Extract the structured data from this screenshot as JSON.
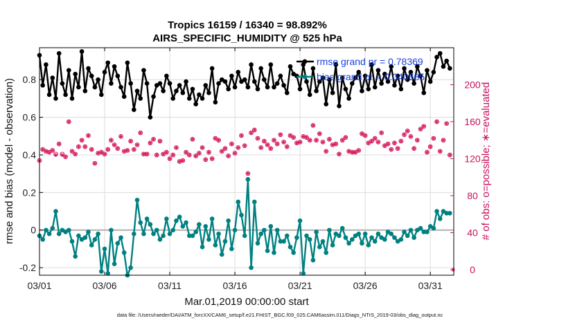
{
  "chart_data": {
    "type": "line",
    "title": [
      "Tropics 16159 / 16340 = 98.892%",
      "AIRS_SPECIFIC_HUMIDITY @ 525 hPa"
    ],
    "xlabel": "Mar.01,2019 00:00:00 start",
    "ylabel": "rmse and bias (model - observation)",
    "ylabel_right": "# of obs: o=possible; ∗=evaluated",
    "xlim": [
      0,
      31.8
    ],
    "ylim": [
      -0.24,
      0.97
    ],
    "ylim_right": [
      -6,
      240
    ],
    "x_ticks": [
      0,
      5,
      10,
      15,
      20,
      25,
      30
    ],
    "x_tick_labels": [
      "03/01",
      "03/06",
      "03/11",
      "03/16",
      "03/21",
      "03/26",
      "03/31"
    ],
    "y_ticks": [
      -0.2,
      0,
      0.2,
      0.4,
      0.6,
      0.8
    ],
    "y_tick_labels": [
      "-0.2",
      "0",
      "0.2",
      "0.4",
      "0.6",
      "0.8"
    ],
    "y_ticks_right": [
      0,
      40,
      80,
      120,
      160,
      200
    ],
    "y_tick_labels_right": [
      "0",
      "40",
      "80",
      "120",
      "160",
      "200"
    ],
    "grid": true,
    "zero_line": 0,
    "legend": [
      "rmse grand pr = 0.78369",
      "bias grand pr = 0.040685"
    ],
    "legend_position": "top-right",
    "colors": {
      "rmse": "#000000",
      "bias": "#008080",
      "obs": "#d4145a",
      "zero": "#b0b0b0",
      "right_axis": "#c8105a"
    },
    "series": [
      {
        "name": "rmse",
        "x": [
          0.0,
          0.25,
          0.5,
          0.75,
          1.0,
          1.25,
          1.5,
          1.75,
          2.0,
          2.25,
          2.5,
          2.75,
          3.0,
          3.25,
          3.5,
          3.75,
          4.0,
          4.25,
          4.5,
          4.75,
          5.0,
          5.25,
          5.5,
          5.75,
          6.0,
          6.25,
          6.5,
          6.75,
          7.0,
          7.25,
          7.5,
          7.75,
          8.0,
          8.25,
          8.5,
          8.75,
          9.0,
          9.25,
          9.5,
          9.75,
          10.0,
          10.25,
          10.5,
          10.75,
          11.0,
          11.25,
          11.5,
          11.75,
          12.0,
          12.25,
          12.5,
          12.75,
          13.0,
          13.25,
          13.5,
          13.75,
          14.0,
          14.25,
          14.5,
          14.75,
          15.0,
          15.25,
          15.5,
          15.75,
          16.0,
          16.25,
          16.5,
          16.75,
          17.0,
          17.25,
          17.5,
          17.75,
          18.0,
          18.25,
          18.5,
          18.75,
          19.0,
          19.25,
          19.5,
          19.75,
          20.0,
          20.25,
          20.5,
          20.75,
          21.0,
          21.25,
          21.5,
          21.75,
          22.0,
          22.25,
          22.5,
          22.75,
          23.0,
          23.25,
          23.5,
          23.75,
          24.0,
          24.25,
          24.5,
          24.75,
          25.0,
          25.25,
          25.5,
          25.75,
          26.0,
          26.25,
          26.5,
          26.75,
          27.0,
          27.25,
          27.5,
          27.75,
          28.0,
          28.25,
          28.5,
          28.75,
          29.0,
          29.25,
          29.5,
          29.75,
          30.0,
          30.25,
          30.5,
          30.75,
          31.0,
          31.25,
          31.5
        ],
        "values": [
          0.93,
          0.77,
          0.88,
          0.72,
          0.81,
          0.7,
          0.94,
          0.78,
          0.72,
          0.85,
          0.7,
          0.83,
          0.76,
          0.95,
          0.74,
          0.86,
          0.82,
          0.76,
          0.8,
          0.72,
          0.84,
          0.89,
          0.78,
          0.87,
          0.82,
          0.76,
          0.71,
          0.89,
          0.78,
          0.64,
          0.74,
          0.7,
          0.85,
          0.78,
          0.6,
          0.71,
          0.77,
          0.78,
          0.74,
          0.82,
          0.78,
          0.7,
          0.74,
          0.77,
          0.73,
          0.79,
          0.7,
          0.75,
          0.67,
          0.72,
          0.7,
          0.77,
          0.73,
          0.86,
          0.68,
          0.78,
          0.8,
          0.79,
          0.75,
          0.82,
          0.76,
          0.84,
          0.79,
          0.8,
          0.76,
          0.88,
          0.79,
          0.75,
          0.86,
          0.8,
          0.76,
          0.88,
          0.76,
          0.78,
          0.82,
          0.77,
          0.73,
          0.87,
          0.83,
          0.82,
          0.75,
          0.88,
          0.79,
          0.72,
          0.86,
          0.74,
          0.79,
          0.81,
          0.67,
          0.8,
          0.73,
          0.88,
          0.66,
          0.81,
          0.75,
          0.7,
          0.78,
          0.81,
          0.84,
          0.74,
          0.82,
          0.75,
          0.88,
          0.76,
          0.85,
          0.78,
          0.83,
          0.79,
          0.87,
          0.77,
          0.82,
          0.75,
          0.86,
          0.8,
          0.84,
          0.78,
          0.87,
          0.82,
          0.73,
          0.85,
          0.79,
          0.84,
          0.92,
          0.94,
          0.87,
          0.9,
          0.86
        ]
      },
      {
        "name": "bias",
        "x": [
          0.0,
          0.25,
          0.5,
          0.75,
          1.0,
          1.25,
          1.5,
          1.75,
          2.0,
          2.25,
          2.5,
          2.75,
          3.0,
          3.25,
          3.5,
          3.75,
          4.0,
          4.25,
          4.5,
          4.75,
          5.0,
          5.25,
          5.5,
          5.75,
          6.0,
          6.25,
          6.5,
          6.75,
          7.0,
          7.25,
          7.5,
          7.75,
          8.0,
          8.25,
          8.5,
          8.75,
          9.0,
          9.25,
          9.5,
          9.75,
          10.0,
          10.25,
          10.5,
          10.75,
          11.0,
          11.25,
          11.5,
          11.75,
          12.0,
          12.25,
          12.5,
          12.75,
          13.0,
          13.25,
          13.5,
          13.75,
          14.0,
          14.25,
          14.5,
          14.75,
          15.0,
          15.25,
          15.5,
          15.75,
          16.0,
          16.25,
          16.5,
          16.75,
          17.0,
          17.25,
          17.5,
          17.75,
          18.0,
          18.25,
          18.5,
          18.75,
          19.0,
          19.25,
          19.5,
          19.75,
          20.0,
          20.25,
          20.5,
          20.75,
          21.0,
          21.25,
          21.5,
          21.75,
          22.0,
          22.25,
          22.5,
          22.75,
          23.0,
          23.25,
          23.5,
          23.75,
          24.0,
          24.25,
          24.5,
          24.75,
          25.0,
          25.25,
          25.5,
          25.75,
          26.0,
          26.25,
          26.5,
          26.75,
          27.0,
          27.25,
          27.5,
          27.75,
          28.0,
          28.25,
          28.5,
          28.75,
          29.0,
          29.25,
          29.5,
          29.75,
          30.0,
          30.25,
          30.5,
          30.75,
          31.0,
          31.25,
          31.5
        ],
        "values": [
          -0.03,
          -0.05,
          0.0,
          -0.02,
          0.01,
          0.1,
          -0.02,
          0.0,
          -0.01,
          0.0,
          -0.06,
          -0.14,
          -0.03,
          -0.05,
          -0.04,
          -0.01,
          -0.08,
          -0.05,
          -0.02,
          -0.22,
          -0.1,
          -0.23,
          0.0,
          -0.18,
          -0.07,
          -0.04,
          -0.12,
          -0.24,
          -0.2,
          -0.02,
          0.16,
          0.04,
          -0.02,
          0.06,
          0.03,
          -0.02,
          0.0,
          -0.05,
          -0.03,
          0.06,
          -0.02,
          0.0,
          0.05,
          0.07,
          0.02,
          0.04,
          -0.03,
          -0.03,
          -0.01,
          0.03,
          -0.09,
          0.02,
          -0.05,
          0.06,
          -0.08,
          -0.02,
          -0.13,
          -0.06,
          0.05,
          -0.1,
          0.0,
          0.15,
          0.08,
          -0.03,
          0.27,
          -0.2,
          0.15,
          -0.07,
          -0.02,
          0.0,
          -0.11,
          0.02,
          -0.12,
          0.0,
          -0.06,
          -0.06,
          -0.03,
          -0.09,
          -0.12,
          -0.04,
          0.05,
          -0.23,
          -0.03,
          -0.05,
          -0.16,
          -0.01,
          -0.09,
          -0.06,
          -0.12,
          0.0,
          -0.08,
          -0.02,
          -0.03,
          0.01,
          -0.04,
          -0.07,
          -0.05,
          -0.03,
          -0.02,
          -0.07,
          -0.02,
          -0.08,
          -0.04,
          -0.06,
          -0.02,
          -0.04,
          -0.05,
          -0.01,
          -0.02,
          -0.04,
          -0.06,
          -0.05,
          -0.01,
          -0.03,
          0.0,
          -0.04,
          0.0,
          0.01,
          -0.01,
          -0.01,
          0.02,
          0.01,
          0.1,
          0.06,
          0.1,
          0.09,
          0.09
        ]
      },
      {
        "name": "obs_possible",
        "axis": "right",
        "x": [
          0.0,
          0.25,
          0.5,
          0.75,
          1.0,
          1.25,
          1.5,
          1.75,
          2.0,
          2.25,
          2.5,
          2.75,
          3.0,
          3.25,
          3.5,
          3.75,
          4.0,
          4.25,
          4.5,
          4.75,
          5.0,
          5.25,
          5.5,
          5.75,
          6.0,
          6.25,
          6.5,
          6.75,
          7.0,
          7.25,
          7.5,
          7.75,
          8.0,
          8.25,
          8.5,
          8.75,
          9.0,
          9.25,
          9.5,
          9.75,
          10.0,
          10.25,
          10.5,
          10.75,
          11.0,
          11.25,
          11.5,
          11.75,
          12.0,
          12.25,
          12.5,
          12.75,
          13.0,
          13.25,
          13.5,
          13.75,
          14.0,
          14.25,
          14.5,
          14.75,
          15.0,
          15.25,
          15.5,
          15.75,
          16.0,
          16.25,
          16.5,
          16.75,
          17.0,
          17.25,
          17.5,
          17.75,
          18.0,
          18.25,
          18.5,
          18.75,
          19.0,
          19.25,
          19.5,
          19.75,
          20.0,
          20.25,
          20.5,
          20.75,
          21.0,
          21.25,
          21.5,
          21.75,
          22.0,
          22.25,
          22.5,
          22.75,
          23.0,
          23.25,
          23.5,
          23.75,
          24.0,
          24.25,
          24.5,
          24.75,
          25.0,
          25.25,
          25.5,
          25.75,
          26.0,
          26.25,
          26.5,
          26.75,
          27.0,
          27.25,
          27.5,
          27.75,
          28.0,
          28.25,
          28.5,
          28.75,
          29.0,
          29.25,
          29.5,
          29.75,
          30.0,
          30.25,
          30.5,
          30.75,
          31.0,
          31.25,
          31.5
        ],
        "values": [
          118,
          130,
          128,
          127,
          129,
          125,
          136,
          125,
          122,
          160,
          128,
          125,
          133,
          140,
          133,
          145,
          130,
          115,
          126,
          127,
          125,
          130,
          140,
          135,
          131,
          144,
          128,
          129,
          139,
          130,
          135,
          148,
          125,
          125,
          137,
          141,
          124,
          139,
          125,
          127,
          120,
          124,
          132,
          117,
          118,
          127,
          124,
          141,
          123,
          126,
          132,
          119,
          127,
          120,
          142,
          140,
          128,
          131,
          123,
          136,
          126,
          132,
          145,
          134,
          104,
          148,
          151,
          142,
          132,
          139,
          135,
          131,
          140,
          136,
          146,
          138,
          133,
          145,
          143,
          137,
          138,
          144,
          143,
          140,
          156,
          140,
          147,
          138,
          128,
          141,
          135,
          136,
          125,
          140,
          143,
          128,
          127,
          127,
          129,
          147,
          145,
          137,
          139,
          142,
          138,
          148,
          134,
          136,
          130,
          137,
          131,
          139,
          146,
          150,
          144,
          131,
          140,
          152,
          155,
          127,
          133,
          142,
          160,
          128,
          140,
          158,
          124
        ]
      },
      {
        "name": "obs_evaluated",
        "axis": "right",
        "x": [
          0.0,
          0.25,
          0.5,
          0.75,
          1.0,
          1.25,
          1.5,
          1.75,
          2.0,
          2.25,
          2.5,
          2.75,
          3.0,
          3.25,
          3.5,
          3.75,
          4.0,
          4.25,
          4.5,
          4.75,
          5.0,
          5.25,
          5.5,
          5.75,
          6.0,
          6.25,
          6.5,
          6.75,
          7.0,
          7.25,
          7.5,
          7.75,
          8.0,
          8.25,
          8.5,
          8.75,
          9.0,
          9.25,
          9.5,
          9.75,
          10.0,
          10.25,
          10.5,
          10.75,
          11.0,
          11.25,
          11.5,
          11.75,
          12.0,
          12.25,
          12.5,
          12.75,
          13.0,
          13.25,
          13.5,
          13.75,
          14.0,
          14.25,
          14.5,
          14.75,
          15.0,
          15.25,
          15.5,
          15.75,
          16.0,
          16.25,
          16.5,
          16.75,
          17.0,
          17.25,
          17.5,
          17.75,
          18.0,
          18.25,
          18.5,
          18.75,
          19.0,
          19.25,
          19.5,
          19.75,
          20.0,
          20.25,
          20.5,
          20.75,
          21.0,
          21.25,
          21.5,
          21.75,
          22.0,
          22.25,
          22.5,
          22.75,
          23.0,
          23.25,
          23.5,
          23.75,
          24.0,
          24.25,
          24.5,
          24.75,
          25.0,
          25.25,
          25.5,
          25.75,
          26.0,
          26.25,
          26.5,
          26.75,
          27.0,
          27.25,
          27.5,
          27.75,
          28.0,
          28.25,
          28.5,
          28.75,
          29.0,
          29.25,
          29.5,
          29.75,
          30.0,
          30.25,
          30.5,
          30.75,
          31.0,
          31.25,
          31.5,
          31.75
        ],
        "values": [
          118,
          130,
          128,
          127,
          129,
          124,
          136,
          124,
          122,
          160,
          128,
          125,
          133,
          140,
          133,
          145,
          130,
          115,
          126,
          127,
          125,
          130,
          140,
          135,
          131,
          144,
          128,
          129,
          139,
          130,
          135,
          148,
          125,
          125,
          137,
          141,
          124,
          139,
          125,
          127,
          120,
          124,
          132,
          117,
          118,
          127,
          124,
          141,
          123,
          126,
          132,
          119,
          127,
          120,
          142,
          140,
          128,
          131,
          123,
          136,
          126,
          132,
          145,
          134,
          104,
          148,
          151,
          142,
          132,
          139,
          135,
          131,
          140,
          136,
          146,
          138,
          133,
          145,
          143,
          137,
          138,
          144,
          143,
          140,
          156,
          140,
          147,
          138,
          128,
          141,
          135,
          136,
          125,
          140,
          143,
          128,
          127,
          127,
          129,
          147,
          145,
          137,
          139,
          142,
          138,
          148,
          134,
          136,
          130,
          137,
          131,
          139,
          146,
          150,
          144,
          131,
          140,
          152,
          155,
          127,
          133,
          142,
          160,
          128,
          140,
          158,
          124,
          0
        ]
      }
    ],
    "footer": "data file: /Users/raeder/DAI/ATM_forcXX/CAM6_setup/f.e21.FHIST_BGC.f09_025.CAM6assim.011/Diags_NTrS_2019-03/obs_diag_output.nc"
  }
}
